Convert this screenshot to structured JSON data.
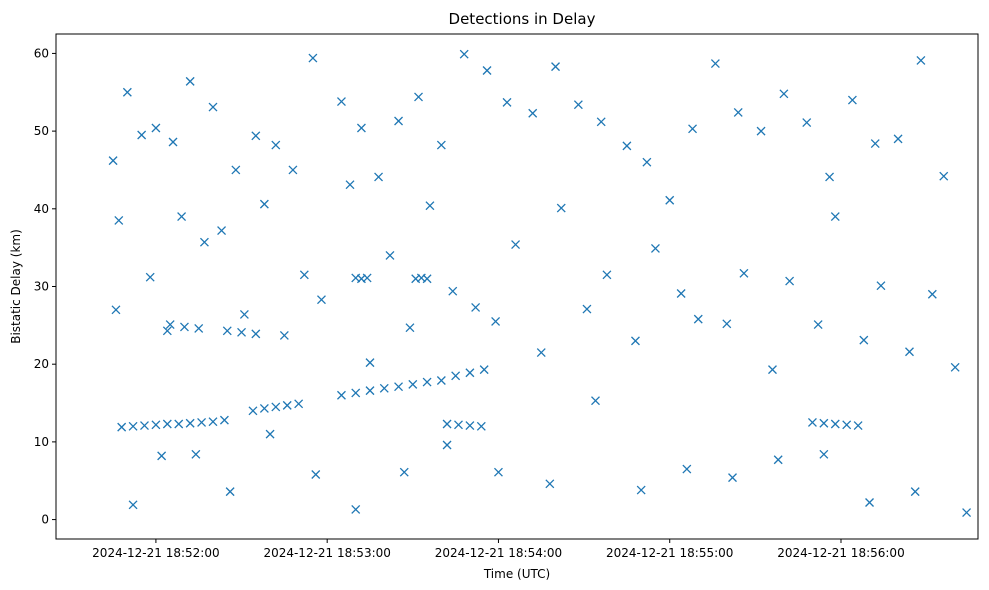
{
  "chart_data": {
    "type": "scatter",
    "title": "Detections in Delay",
    "xlabel": "Time (UTC)",
    "ylabel": "Bistatic Delay (km)",
    "marker": "x",
    "color": "#1f77b4",
    "grid": false,
    "legend": "none",
    "xlim": [
      "2024-12-21 18:51:25",
      "2024-12-21 18:56:48"
    ],
    "ylim": [
      -2.5,
      62.5
    ],
    "xticks": [
      "2024-12-21 18:52:00",
      "2024-12-21 18:53:00",
      "2024-12-21 18:54:00",
      "2024-12-21 18:55:00",
      "2024-12-21 18:56:00"
    ],
    "yticks": [
      0,
      10,
      20,
      30,
      40,
      50,
      60
    ],
    "series": [
      {
        "x": [
          "2024-12-21 18:51:45",
          "2024-12-21 18:51:50",
          "2024-12-21 18:51:55",
          "2024-12-21 18:52:00",
          "2024-12-21 18:52:06",
          "2024-12-21 18:52:12",
          "2024-12-21 18:52:20",
          "2024-12-21 18:52:28",
          "2024-12-21 18:52:35",
          "2024-12-21 18:52:42",
          "2024-12-21 18:52:48",
          "2024-12-21 18:52:55",
          "2024-12-21 18:53:05",
          "2024-12-21 18:53:12",
          "2024-12-21 18:53:18",
          "2024-12-21 18:53:25",
          "2024-12-21 18:53:32",
          "2024-12-21 18:53:40",
          "2024-12-21 18:53:48",
          "2024-12-21 18:53:56",
          "2024-12-21 18:54:03",
          "2024-12-21 18:54:12",
          "2024-12-21 18:54:20",
          "2024-12-21 18:54:28",
          "2024-12-21 18:54:36",
          "2024-12-21 18:54:45",
          "2024-12-21 18:54:52",
          "2024-12-21 18:55:00",
          "2024-12-21 18:55:08",
          "2024-12-21 18:55:16",
          "2024-12-21 18:55:24",
          "2024-12-21 18:55:32",
          "2024-12-21 18:55:40",
          "2024-12-21 18:55:48",
          "2024-12-21 18:55:56",
          "2024-12-21 18:56:04",
          "2024-12-21 18:56:12",
          "2024-12-21 18:56:20",
          "2024-12-21 18:56:28",
          "2024-12-21 18:56:36",
          "2024-12-21 18:51:47",
          "2024-12-21 18:51:58",
          "2024-12-21 18:52:09",
          "2024-12-21 18:52:23",
          "2024-12-21 18:52:38",
          "2024-12-21 18:52:52",
          "2024-12-21 18:53:08",
          "2024-12-21 18:53:22",
          "2024-12-21 18:53:36",
          "2024-12-21 18:53:52",
          "2024-12-21 18:54:06",
          "2024-12-21 18:54:22",
          "2024-12-21 18:54:38",
          "2024-12-21 18:54:55",
          "2024-12-21 18:55:10",
          "2024-12-21 18:55:26",
          "2024-12-21 18:55:42",
          "2024-12-21 18:55:58",
          "2024-12-21 18:56:14",
          "2024-12-21 18:56:32",
          "2024-12-21 18:51:46",
          "2024-12-21 18:52:04",
          "2024-12-21 18:52:17",
          "2024-12-21 18:52:31",
          "2024-12-21 18:52:45",
          "2024-12-21 18:52:58",
          "2024-12-21 18:53:15",
          "2024-12-21 18:53:29",
          "2024-12-21 18:53:44",
          "2024-12-21 18:53:59",
          "2024-12-21 18:54:15",
          "2024-12-21 18:54:31",
          "2024-12-21 18:54:48",
          "2024-12-21 18:55:04",
          "2024-12-21 18:55:20",
          "2024-12-21 18:55:36",
          "2024-12-21 18:55:52",
          "2024-12-21 18:56:08",
          "2024-12-21 18:56:24",
          "2024-12-21 18:56:40",
          "2024-12-21 18:51:52",
          "2024-12-21 18:52:14",
          "2024-12-21 18:52:26",
          "2024-12-21 18:52:40",
          "2024-12-21 18:52:56",
          "2024-12-21 18:53:10",
          "2024-12-21 18:53:27",
          "2024-12-21 18:53:42",
          "2024-12-21 18:54:00",
          "2024-12-21 18:54:18",
          "2024-12-21 18:54:34",
          "2024-12-21 18:54:50",
          "2024-12-21 18:55:06",
          "2024-12-21 18:55:22",
          "2024-12-21 18:55:38",
          "2024-12-21 18:55:54",
          "2024-12-21 18:56:10",
          "2024-12-21 18:56:26",
          "2024-12-21 18:56:44",
          "2024-12-21 18:52:02",
          "2024-12-21 18:51:48",
          "2024-12-21 18:51:52",
          "2024-12-21 18:51:56",
          "2024-12-21 18:52:00",
          "2024-12-21 18:52:04",
          "2024-12-21 18:52:08",
          "2024-12-21 18:52:12",
          "2024-12-21 18:52:16",
          "2024-12-21 18:52:20",
          "2024-12-21 18:52:24",
          "2024-12-21 18:52:34",
          "2024-12-21 18:52:38",
          "2024-12-21 18:52:42",
          "2024-12-21 18:52:46",
          "2024-12-21 18:52:50",
          "2024-12-21 18:53:05",
          "2024-12-21 18:53:10",
          "2024-12-21 18:53:15",
          "2024-12-21 18:53:20",
          "2024-12-21 18:53:25",
          "2024-12-21 18:53:30",
          "2024-12-21 18:53:35",
          "2024-12-21 18:53:40",
          "2024-12-21 18:53:45",
          "2024-12-21 18:53:50",
          "2024-12-21 18:53:55",
          "2024-12-21 18:53:42",
          "2024-12-21 18:53:46",
          "2024-12-21 18:53:50",
          "2024-12-21 18:53:54",
          "2024-12-21 18:55:50",
          "2024-12-21 18:55:54",
          "2024-12-21 18:55:58",
          "2024-12-21 18:56:02",
          "2024-12-21 18:56:06",
          "2024-12-21 18:52:05",
          "2024-12-21 18:52:10",
          "2024-12-21 18:52:15",
          "2024-12-21 18:52:25",
          "2024-12-21 18:52:30",
          "2024-12-21 18:52:35",
          "2024-12-21 18:53:10",
          "2024-12-21 18:53:12",
          "2024-12-21 18:53:14",
          "2024-12-21 18:53:31",
          "2024-12-21 18:53:33",
          "2024-12-21 18:53:35"
        ],
        "y": [
          46.2,
          55.0,
          49.5,
          50.4,
          48.6,
          56.4,
          53.1,
          45.0,
          49.4,
          48.2,
          45.0,
          59.4,
          53.8,
          50.4,
          44.1,
          51.3,
          54.4,
          48.2,
          59.9,
          57.8,
          53.7,
          52.3,
          58.3,
          53.4,
          51.2,
          48.1,
          46.0,
          41.1,
          50.3,
          58.7,
          52.4,
          50.0,
          54.8,
          51.1,
          44.1,
          54.0,
          48.4,
          49.0,
          59.1,
          44.2,
          38.5,
          31.2,
          39.0,
          37.2,
          40.6,
          31.5,
          43.1,
          34.0,
          40.4,
          27.3,
          35.4,
          40.1,
          31.5,
          34.9,
          25.8,
          31.7,
          30.7,
          39.0,
          30.1,
          29.0,
          27.0,
          24.3,
          35.7,
          26.4,
          23.7,
          28.3,
          20.2,
          24.7,
          29.4,
          25.5,
          21.5,
          27.1,
          23.0,
          29.1,
          25.2,
          19.3,
          25.1,
          23.1,
          21.6,
          19.6,
          1.9,
          8.4,
          3.6,
          11.0,
          5.8,
          1.3,
          6.1,
          9.6,
          6.1,
          4.6,
          15.3,
          3.8,
          6.5,
          5.4,
          7.7,
          8.4,
          2.2,
          3.6,
          0.9,
          8.2,
          11.9,
          12.0,
          12.1,
          12.2,
          12.3,
          12.3,
          12.4,
          12.5,
          12.6,
          12.8,
          14.0,
          14.3,
          14.5,
          14.7,
          14.9,
          16.0,
          16.3,
          16.6,
          16.9,
          17.1,
          17.4,
          17.7,
          17.9,
          18.5,
          18.9,
          19.3,
          12.3,
          12.2,
          12.1,
          12.0,
          12.5,
          12.4,
          12.3,
          12.2,
          12.1,
          25.1,
          24.8,
          24.6,
          24.3,
          24.1,
          23.9,
          31.1,
          31.0,
          31.1,
          31.0,
          31.1,
          31.0
        ]
      }
    ]
  }
}
